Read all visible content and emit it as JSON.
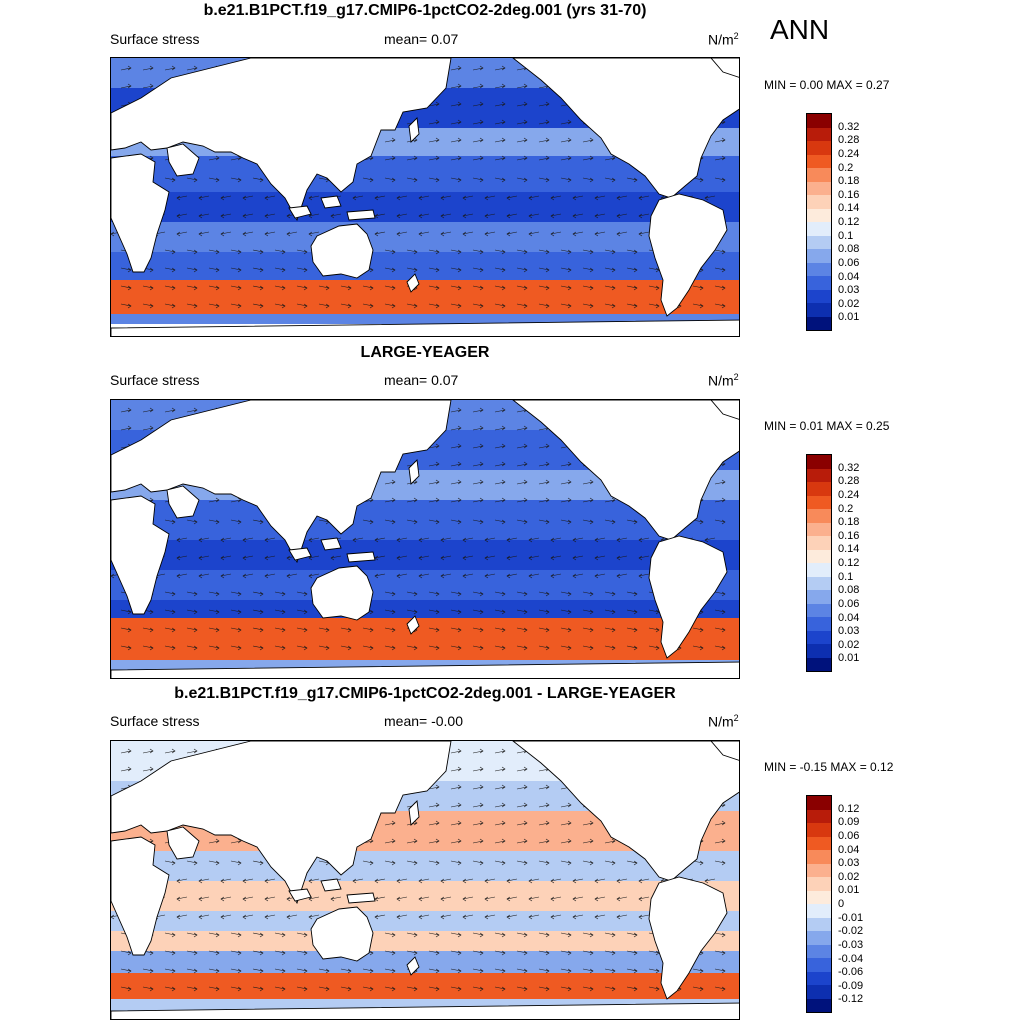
{
  "season": "ANN",
  "panels": [
    {
      "title": "b.e21.B1PCT.f19_g17.CMIP6-1pctCO2-2deg.001 (yrs 31-70)",
      "variable": "Surface stress",
      "mean_label": "mean=   0.07",
      "units": "N/m",
      "units_sup": "2",
      "minmax": "MIN =   0.00 MAX =   0.27",
      "colorbar": {
        "labels": [
          "0.32",
          "0.28",
          "0.24",
          "0.2",
          "0.18",
          "0.16",
          "0.14",
          "0.12",
          "0.1",
          "0.08",
          "0.06",
          "0.04",
          "0.03",
          "0.02",
          "0.01"
        ],
        "colors": [
          "#8a0000",
          "#b81c0a",
          "#d8380f",
          "#ef5a22",
          "#f88a5a",
          "#fbb08e",
          "#fdd2b8",
          "#fdebdc",
          "#e2edfb",
          "#b4ccf3",
          "#86a8ec",
          "#5c84e4",
          "#3863dc",
          "#1c44cc",
          "#0d2fb0",
          "#00127c"
        ]
      }
    },
    {
      "title": "LARGE-YEAGER",
      "variable": "Surface stress",
      "mean_label": "mean=   0.07",
      "units": "N/m",
      "units_sup": "2",
      "minmax": "MIN =   0.01 MAX =   0.25",
      "colorbar": {
        "labels": [
          "0.32",
          "0.28",
          "0.24",
          "0.2",
          "0.18",
          "0.16",
          "0.14",
          "0.12",
          "0.1",
          "0.08",
          "0.06",
          "0.04",
          "0.03",
          "0.02",
          "0.01"
        ],
        "colors": [
          "#8a0000",
          "#b81c0a",
          "#d8380f",
          "#ef5a22",
          "#f88a5a",
          "#fbb08e",
          "#fdd2b8",
          "#fdebdc",
          "#e2edfb",
          "#b4ccf3",
          "#86a8ec",
          "#5c84e4",
          "#3863dc",
          "#1c44cc",
          "#0d2fb0",
          "#00127c"
        ]
      }
    },
    {
      "title": "b.e21.B1PCT.f19_g17.CMIP6-1pctCO2-2deg.001 - LARGE-YEAGER",
      "variable": "Surface stress",
      "mean_label": "mean=   -0.00",
      "units": "N/m",
      "units_sup": "2",
      "minmax": "MIN =  -0.15 MAX =   0.12",
      "colorbar": {
        "labels": [
          "0.12",
          "0.09",
          "0.06",
          "0.04",
          "0.03",
          "0.02",
          "0.01",
          "0",
          "-0.01",
          "-0.02",
          "-0.03",
          "-0.04",
          "-0.06",
          "-0.09",
          "-0.12"
        ],
        "colors": [
          "#8a0000",
          "#b81c0a",
          "#d8380f",
          "#ef5a22",
          "#f88a5a",
          "#fbb08e",
          "#fdd2b8",
          "#fdebdc",
          "#e2edfb",
          "#b4ccf3",
          "#86a8ec",
          "#5c84e4",
          "#3863dc",
          "#1c44cc",
          "#0d2fb0",
          "#00127c"
        ]
      }
    }
  ]
}
